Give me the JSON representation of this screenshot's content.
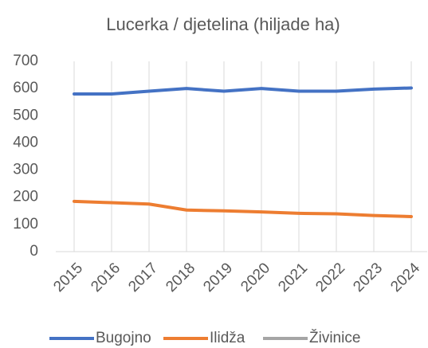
{
  "chart_data": {
    "type": "line",
    "title": "Lucerka / djetelina (hiljade ha)",
    "categories": [
      "2015",
      "2016",
      "2017",
      "2018",
      "2019",
      "2020",
      "2021",
      "2022",
      "2023",
      "2024"
    ],
    "series": [
      {
        "name": "Bugojno",
        "color": "#4472c4",
        "values": [
          580,
          580,
          590,
          600,
          590,
          600,
          590,
          590,
          598,
          602
        ]
      },
      {
        "name": "Ilidža",
        "color": "#ed7d31",
        "values": [
          185,
          180,
          175,
          153,
          150,
          146,
          141,
          139,
          133,
          129
        ]
      },
      {
        "name": "Živinice",
        "color": "#a5a5a5",
        "values": [
          null,
          null,
          null,
          null,
          null,
          null,
          null,
          null,
          null,
          null
        ]
      }
    ],
    "ylim": [
      0,
      700
    ],
    "yticks": [
      0,
      100,
      200,
      300,
      400,
      500,
      600,
      700
    ],
    "grid": "vertical",
    "legend": "bottom"
  }
}
